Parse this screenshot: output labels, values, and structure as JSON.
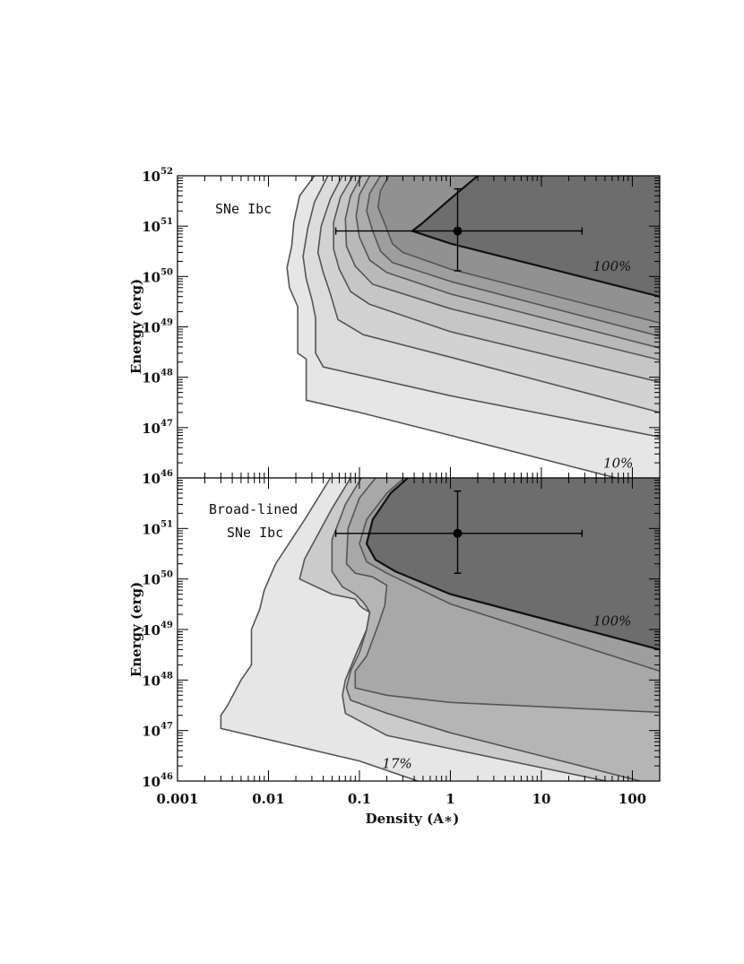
{
  "chart_data": [
    {
      "type": "contour",
      "panel_label": "SNe Ibc",
      "ylabel": "Energy (erg)",
      "xlabel": "",
      "x_scale": "log",
      "y_scale": "log",
      "xlim": [
        0.001,
        200
      ],
      "ylim": [
        1e+46,
        1e+52
      ],
      "y_ticks": [
        {
          "base": "10",
          "exp": "52",
          "value": 1e+52
        },
        {
          "base": "10",
          "exp": "51",
          "value": 1e+51
        },
        {
          "base": "10",
          "exp": "50",
          "value": 1e+50
        },
        {
          "base": "10",
          "exp": "49",
          "value": 1e+49
        },
        {
          "base": "10",
          "exp": "48",
          "value": 1e+48
        },
        {
          "base": "10",
          "exp": "47",
          "value": 1e+47
        },
        {
          "base": "10",
          "exp": "46",
          "value": 1e+46
        }
      ],
      "contour_labels": [
        {
          "text": "100%",
          "x": 60,
          "y": 1.3e+50
        },
        {
          "text": "10%",
          "x": 70,
          "y": 1.6e+46
        }
      ],
      "contours": [
        {
          "level": "10%",
          "color": "#e6e6e6",
          "points": [
            [
              0.032,
              1e+52
            ],
            [
              0.022,
              4e+51
            ],
            [
              0.019,
              1.2e+51
            ],
            [
              0.018,
              4e+50
            ],
            [
              0.016,
              1.5e+50
            ],
            [
              0.017,
              6e+49
            ],
            [
              0.021,
              2.5e+49
            ],
            [
              0.021,
              3e+48
            ],
            [
              0.026,
              2.3e+48
            ],
            [
              0.026,
              3.5e+47
            ],
            [
              0.1,
              2e+47
            ],
            [
              1,
              7e+46
            ],
            [
              200,
              6e+45
            ]
          ]
        },
        {
          "level": "",
          "color": "#dcdcdc",
          "points": [
            [
              0.045,
              1e+52
            ],
            [
              0.032,
              3e+51
            ],
            [
              0.027,
              9e+50
            ],
            [
              0.024,
              2.5e+50
            ],
            [
              0.026,
              9e+49
            ],
            [
              0.03,
              3.5e+49
            ],
            [
              0.033,
              1.5e+49
            ],
            [
              0.033,
              3e+48
            ],
            [
              0.04,
              1.6e+48
            ],
            [
              1,
              4.3e+47
            ],
            [
              200,
              6.5e+46
            ]
          ]
        },
        {
          "level": "",
          "color": "#d2d2d2",
          "points": [
            [
              0.065,
              1e+52
            ],
            [
              0.048,
              3.5e+51
            ],
            [
              0.038,
              1e+51
            ],
            [
              0.035,
              3e+50
            ],
            [
              0.04,
              1.2e+50
            ],
            [
              0.048,
              4.5e+49
            ],
            [
              0.058,
              1.4e+49
            ],
            [
              0.11,
              7e+48
            ],
            [
              1,
              2.5e+48
            ],
            [
              200,
              2e+47
            ]
          ]
        },
        {
          "level": "",
          "color": "#c6c6c6",
          "points": [
            [
              0.085,
              1e+52
            ],
            [
              0.062,
              3.8e+51
            ],
            [
              0.052,
              1.2e+51
            ],
            [
              0.052,
              3.5e+50
            ],
            [
              0.06,
              1.4e+50
            ],
            [
              0.08,
              5e+49
            ],
            [
              0.13,
              2.8e+49
            ],
            [
              1,
              8e+48
            ],
            [
              200,
              8e+47
            ]
          ]
        },
        {
          "level": "",
          "color": "#b9b9b9",
          "points": [
            [
              0.105,
              1e+52
            ],
            [
              0.08,
              4e+51
            ],
            [
              0.07,
              1.4e+51
            ],
            [
              0.072,
              4e+50
            ],
            [
              0.09,
              1.6e+50
            ],
            [
              0.14,
              7e+49
            ],
            [
              1,
              2.3e+49
            ],
            [
              200,
              2.2e+48
            ]
          ]
        },
        {
          "level": "",
          "color": "#acacac",
          "points": [
            [
              0.13,
              1e+52
            ],
            [
              0.1,
              4.2e+51
            ],
            [
              0.092,
              1.6e+51
            ],
            [
              0.1,
              6e+50
            ],
            [
              0.13,
              2.1e+50
            ],
            [
              0.2,
              1.2e+50
            ],
            [
              1,
              4.5e+49
            ],
            [
              200,
              3.8e+48
            ]
          ]
        },
        {
          "level": "",
          "color": "#9e9e9e",
          "points": [
            [
              0.17,
              1e+52
            ],
            [
              0.13,
              4.5e+51
            ],
            [
              0.12,
              2e+51
            ],
            [
              0.14,
              8e+50
            ],
            [
              0.17,
              3.2e+50
            ],
            [
              0.23,
              1.9e+50
            ],
            [
              1,
              8e+49
            ],
            [
              200,
              6.5e+48
            ]
          ]
        },
        {
          "level": "",
          "color": "#919191",
          "points": [
            [
              0.21,
              1e+52
            ],
            [
              0.17,
              5e+51
            ],
            [
              0.16,
              2.4e+51
            ],
            [
              0.19,
              1.1e+51
            ],
            [
              0.23,
              4.5e+50
            ],
            [
              0.3,
              3e+50
            ],
            [
              1,
              1.4e+50
            ],
            [
              200,
              1.2e+49
            ]
          ]
        },
        {
          "level": "100%",
          "color": "#6d6d6d",
          "points": [
            [
              2,
              1e+52
            ],
            [
              1,
              3.5e+51
            ],
            [
              0.48,
              1.1e+51
            ],
            [
              0.38,
              8e+50
            ],
            [
              1,
              4.5e+50
            ],
            [
              200,
              4e+49
            ]
          ]
        }
      ],
      "points": [
        {
          "x": 1.2,
          "y": 8e+50,
          "x_err": [
            0.055,
            28
          ],
          "y_err": [
            1.3e+50,
            5.5e+51
          ]
        }
      ]
    },
    {
      "type": "contour",
      "panel_label": "Broad-lined SNe Ibc",
      "panel_label_lines": [
        "Broad-lined",
        "SNe Ibc"
      ],
      "ylabel": "Energy (erg)",
      "xlabel": "Density (A∗)",
      "x_scale": "log",
      "y_scale": "log",
      "xlim": [
        0.001,
        200
      ],
      "ylim": [
        1e+46,
        1e+52
      ],
      "x_ticks": [
        {
          "label": "0.001",
          "value": 0.001
        },
        {
          "label": "0.01",
          "value": 0.01
        },
        {
          "label": "0.1",
          "value": 0.1
        },
        {
          "label": "1",
          "value": 1
        },
        {
          "label": "10",
          "value": 10
        },
        {
          "label": "100",
          "value": 100
        }
      ],
      "y_ticks": [
        {
          "base": "10",
          "exp": "51",
          "value": 1e+51
        },
        {
          "base": "10",
          "exp": "50",
          "value": 1e+50
        },
        {
          "base": "10",
          "exp": "49",
          "value": 1e+49
        },
        {
          "base": "10",
          "exp": "48",
          "value": 1e+48
        },
        {
          "base": "10",
          "exp": "47",
          "value": 1e+47
        },
        {
          "base": "10",
          "exp": "46",
          "value": 1e+46
        }
      ],
      "contour_labels": [
        {
          "text": "100%",
          "x": 60,
          "y": 1.2e+49
        },
        {
          "text": "17%",
          "x": 0.26,
          "y": 1.8e+46
        }
      ],
      "contours": [
        {
          "level": "17%",
          "color": "#e6e6e6",
          "points": [
            [
              0.048,
              1e+52
            ],
            [
              0.025,
              1.5e+51
            ],
            [
              0.012,
              2e+50
            ],
            [
              0.009,
              6e+49
            ],
            [
              0.008,
              2.5e+49
            ],
            [
              0.0065,
              1e+49
            ],
            [
              0.0065,
              2e+48
            ],
            [
              0.005,
              1e+48
            ],
            [
              0.0035,
              3e+47
            ],
            [
              0.003,
              2e+47
            ],
            [
              0.003,
              1.1e+47
            ],
            [
              0.1,
              2.5e+46
            ],
            [
              1,
              6e+45
            ],
            [
              200,
              6e+45
            ]
          ]
        },
        {
          "level": "",
          "color": "#cbcbcb",
          "points": [
            [
              0.08,
              1e+52
            ],
            [
              0.05,
              2.5e+51
            ],
            [
              0.025,
              2.5e+50
            ],
            [
              0.022,
              1e+50
            ],
            [
              0.05,
              5e+49
            ],
            [
              0.09,
              4e+49
            ],
            [
              0.1,
              3e+49
            ],
            [
              0.11,
              2.6e+49
            ],
            [
              0.13,
              2.2e+49
            ],
            [
              0.12,
              1e+49
            ],
            [
              0.09,
              3e+48
            ],
            [
              0.07,
              1e+48
            ],
            [
              0.065,
              5e+47
            ],
            [
              0.07,
              2.2e+47
            ],
            [
              0.2,
              8e+46
            ],
            [
              200,
              6e+45
            ]
          ]
        },
        {
          "level": "",
          "color": "#b5b5b5",
          "points": [
            [
              0.105,
              1e+52
            ],
            [
              0.07,
              3e+51
            ],
            [
              0.05,
              6e+50
            ],
            [
              0.05,
              1.4e+50
            ],
            [
              0.065,
              7e+49
            ],
            [
              0.09,
              5e+49
            ],
            [
              0.11,
              3.5e+49
            ],
            [
              0.12,
              2.8e+49
            ],
            [
              0.13,
              2.2e+49
            ],
            [
              0.12,
              1e+49
            ],
            [
              0.1,
              3.5e+48
            ],
            [
              0.08,
              1.5e+48
            ],
            [
              0.072,
              7e+47
            ],
            [
              0.08,
              4e+47
            ],
            [
              0.2,
              2.2e+47
            ],
            [
              1,
              9e+46
            ],
            [
              200,
              8e+45
            ]
          ]
        },
        {
          "level": "",
          "color": "#a8a8a8",
          "points": [
            [
              0.15,
              1e+52
            ],
            [
              0.1,
              4e+51
            ],
            [
              0.075,
              1e+51
            ],
            [
              0.072,
              2e+50
            ],
            [
              0.09,
              1.3e+50
            ],
            [
              0.14,
              1.1e+50
            ],
            [
              0.2,
              7.5e+49
            ],
            [
              0.19,
              3e+49
            ],
            [
              0.16,
              1.2e+49
            ],
            [
              0.12,
              3e+48
            ],
            [
              0.09,
              1.5e+48
            ],
            [
              0.09,
              7e+47
            ],
            [
              0.2,
              5e+47
            ],
            [
              1,
              3.6e+47
            ],
            [
              200,
              2.3e+47
            ]
          ]
        },
        {
          "level": "",
          "color": "#9e9e9e",
          "points": [
            [
              0.31,
              1e+52
            ],
            [
              0.2,
              5e+51
            ],
            [
              0.12,
              1.5e+51
            ],
            [
              0.1,
              5e+50
            ],
            [
              0.12,
              2.2e+50
            ],
            [
              0.2,
              1.3e+50
            ],
            [
              1,
              3.2e+49
            ],
            [
              200,
              1.5e+48
            ]
          ]
        },
        {
          "level": "100%",
          "color": "#6d6d6d",
          "points": [
            [
              0.34,
              1e+52
            ],
            [
              0.22,
              5e+51
            ],
            [
              0.14,
              1.5e+51
            ],
            [
              0.12,
              5e+50
            ],
            [
              0.15,
              2.4e+50
            ],
            [
              0.25,
              1.4e+50
            ],
            [
              1,
              5e+49
            ],
            [
              200,
              4e+48
            ]
          ]
        }
      ],
      "points": [
        {
          "x": 1.2,
          "y": 8e+50,
          "x_err": [
            0.055,
            28
          ],
          "y_err": [
            1.3e+50,
            5.5e+51
          ]
        }
      ]
    }
  ]
}
